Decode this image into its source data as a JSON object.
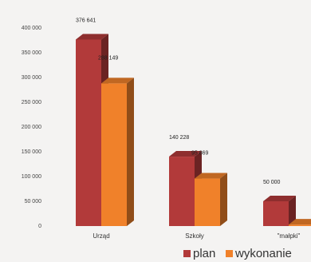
{
  "chart_data": {
    "type": "bar",
    "title": "",
    "xlabel": "",
    "ylabel": "",
    "categories": [
      "Urząd",
      "Szkoły",
      "\"małpki\""
    ],
    "series": [
      {
        "name": "plan",
        "values": [
          376641,
          140228,
          50000
        ],
        "color": "#b23a3a"
      },
      {
        "name": "wykonanie",
        "values": [
          288149,
          95869,
          3000
        ],
        "color": "#f0812a"
      }
    ],
    "data_labels": {
      "plan": [
        "376 641",
        "140 228",
        "50 000"
      ],
      "wykonanie": [
        "288 149",
        "95 869",
        ""
      ]
    },
    "y_ticks": [
      0,
      50000,
      100000,
      150000,
      200000,
      250000,
      300000,
      350000,
      400000
    ],
    "y_tick_labels": [
      "0",
      "50 000",
      "100 000",
      "150 000",
      "200 000",
      "250 000",
      "300 000",
      "350 000",
      "400 000"
    ],
    "ylim": [
      0,
      400000
    ],
    "grid": false,
    "style": "3d-bar",
    "legend_position": "bottom-right"
  }
}
